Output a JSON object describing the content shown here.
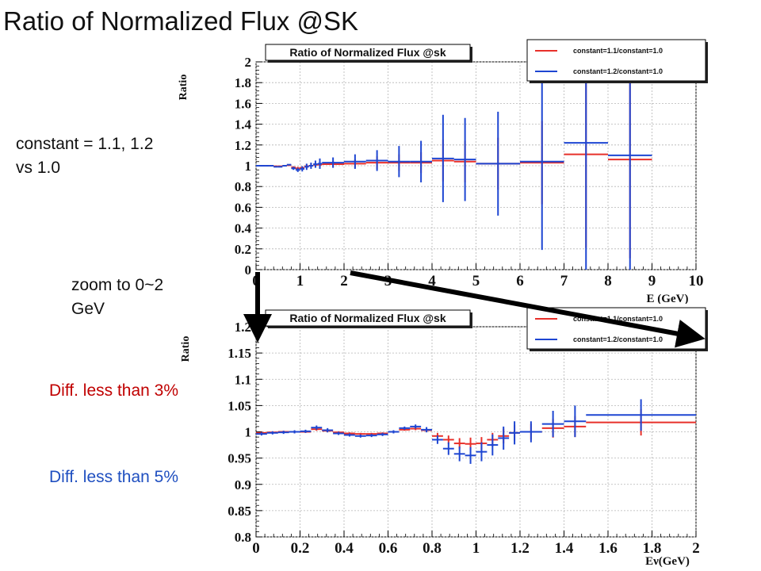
{
  "slide": {
    "title": "Ratio of Normalized Flux @SK",
    "note_constant_line1": "constant = 1.1, 1.2",
    "note_constant_line2": "vs 1.0",
    "note_zoom_line1": "zoom to 0~2",
    "note_zoom_line2": "GeV",
    "note_diff_red": "Diff. less than 3%",
    "note_diff_blue": "Diff. less than 5%",
    "colors": {
      "red": "#e8302a",
      "blue": "#1e46d2",
      "note_red": "#c00000",
      "note_blue": "#1f4fc0",
      "arrow": "#000000"
    }
  },
  "chart_data": [
    {
      "type": "scatter",
      "title": "Ratio of Normalized Flux @sk",
      "xlabel": "E (GeV)",
      "ylabel": "Ratio",
      "xlim": [
        0,
        10
      ],
      "ylim": [
        0,
        2
      ],
      "x_ticks": [
        "0",
        "1",
        "2",
        "3",
        "4",
        "5",
        "6",
        "7",
        "8",
        "9",
        "10"
      ],
      "y_ticks": [
        "0",
        "0.2",
        "0.4",
        "0.6",
        "0.8",
        "1",
        "1.2",
        "1.4",
        "1.6",
        "1.8",
        "2"
      ],
      "grid": true,
      "legend_position": "top-right",
      "series": [
        {
          "name": "constant=1.1/constant=1.0",
          "color": "#e8302a",
          "points": [
            {
              "x": 0.05,
              "xerr": 0.05,
              "y": 1.0,
              "yerr": 0.005
            },
            {
              "x": 0.15,
              "xerr": 0.05,
              "y": 1.0,
              "yerr": 0.005
            },
            {
              "x": 0.25,
              "xerr": 0.05,
              "y": 1.0,
              "yerr": 0.005
            },
            {
              "x": 0.35,
              "xerr": 0.05,
              "y": 1.0,
              "yerr": 0.005
            },
            {
              "x": 0.45,
              "xerr": 0.05,
              "y": 0.995,
              "yerr": 0.005
            },
            {
              "x": 0.55,
              "xerr": 0.05,
              "y": 0.995,
              "yerr": 0.005
            },
            {
              "x": 0.65,
              "xerr": 0.05,
              "y": 1.0,
              "yerr": 0.005
            },
            {
              "x": 0.75,
              "xerr": 0.05,
              "y": 1.005,
              "yerr": 0.005
            },
            {
              "x": 0.85,
              "xerr": 0.05,
              "y": 0.985,
              "yerr": 0.01
            },
            {
              "x": 0.95,
              "xerr": 0.05,
              "y": 0.975,
              "yerr": 0.015
            },
            {
              "x": 1.05,
              "xerr": 0.05,
              "y": 0.98,
              "yerr": 0.015
            },
            {
              "x": 1.15,
              "xerr": 0.05,
              "y": 0.995,
              "yerr": 0.02
            },
            {
              "x": 1.25,
              "xerr": 0.05,
              "y": 1.0,
              "yerr": 0.02
            },
            {
              "x": 1.35,
              "xerr": 0.05,
              "y": 1.01,
              "yerr": 0.02
            },
            {
              "x": 1.45,
              "xerr": 0.05,
              "y": 1.01,
              "yerr": 0.03
            },
            {
              "x": 1.75,
              "xerr": 0.25,
              "y": 1.015,
              "yerr": 0.03
            },
            {
              "x": 2.25,
              "xerr": 0.25,
              "y": 1.02,
              "yerr": 0.04
            },
            {
              "x": 2.75,
              "xerr": 0.25,
              "y": 1.03,
              "yerr": 0.06
            },
            {
              "x": 3.25,
              "xerr": 0.25,
              "y": 1.03,
              "yerr": 0.08
            },
            {
              "x": 3.75,
              "xerr": 0.25,
              "y": 1.03,
              "yerr": 0.1
            },
            {
              "x": 4.25,
              "xerr": 0.25,
              "y": 1.05,
              "yerr": 0.2
            },
            {
              "x": 4.75,
              "xerr": 0.25,
              "y": 1.04,
              "yerr": 0.2
            },
            {
              "x": 5.5,
              "xerr": 0.5,
              "y": 1.02,
              "yerr": 0.25
            },
            {
              "x": 6.5,
              "xerr": 0.5,
              "y": 1.03,
              "yerr": 0.4
            },
            {
              "x": 7.5,
              "xerr": 0.5,
              "y": 1.11,
              "yerr": 0.9
            },
            {
              "x": 8.5,
              "xerr": 0.5,
              "y": 1.06,
              "yerr": 0.95
            }
          ]
        },
        {
          "name": "constant=1.2/constant=1.0",
          "color": "#1e46d2",
          "points": [
            {
              "x": 0.05,
              "xerr": 0.05,
              "y": 1.0,
              "yerr": 0.005
            },
            {
              "x": 0.15,
              "xerr": 0.05,
              "y": 1.0,
              "yerr": 0.005
            },
            {
              "x": 0.25,
              "xerr": 0.05,
              "y": 1.0,
              "yerr": 0.005
            },
            {
              "x": 0.35,
              "xerr": 0.05,
              "y": 1.0,
              "yerr": 0.005
            },
            {
              "x": 0.45,
              "xerr": 0.05,
              "y": 0.99,
              "yerr": 0.005
            },
            {
              "x": 0.55,
              "xerr": 0.05,
              "y": 0.99,
              "yerr": 0.005
            },
            {
              "x": 0.65,
              "xerr": 0.05,
              "y": 1.0,
              "yerr": 0.005
            },
            {
              "x": 0.75,
              "xerr": 0.05,
              "y": 1.01,
              "yerr": 0.005
            },
            {
              "x": 0.85,
              "xerr": 0.05,
              "y": 0.975,
              "yerr": 0.015
            },
            {
              "x": 0.95,
              "xerr": 0.05,
              "y": 0.96,
              "yerr": 0.02
            },
            {
              "x": 1.05,
              "xerr": 0.05,
              "y": 0.97,
              "yerr": 0.025
            },
            {
              "x": 1.15,
              "xerr": 0.05,
              "y": 0.99,
              "yerr": 0.03
            },
            {
              "x": 1.25,
              "xerr": 0.05,
              "y": 1.0,
              "yerr": 0.03
            },
            {
              "x": 1.35,
              "xerr": 0.05,
              "y": 1.015,
              "yerr": 0.035
            },
            {
              "x": 1.45,
              "xerr": 0.05,
              "y": 1.02,
              "yerr": 0.05
            },
            {
              "x": 1.75,
              "xerr": 0.25,
              "y": 1.03,
              "yerr": 0.05
            },
            {
              "x": 2.25,
              "xerr": 0.25,
              "y": 1.04,
              "yerr": 0.07
            },
            {
              "x": 2.75,
              "xerr": 0.25,
              "y": 1.05,
              "yerr": 0.1
            },
            {
              "x": 3.25,
              "xerr": 0.25,
              "y": 1.04,
              "yerr": 0.15
            },
            {
              "x": 3.75,
              "xerr": 0.25,
              "y": 1.04,
              "yerr": 0.2
            },
            {
              "x": 4.25,
              "xerr": 0.25,
              "y": 1.07,
              "yerr": 0.42
            },
            {
              "x": 4.75,
              "xerr": 0.25,
              "y": 1.06,
              "yerr": 0.4
            },
            {
              "x": 5.5,
              "xerr": 0.5,
              "y": 1.02,
              "yerr": 0.5
            },
            {
              "x": 6.5,
              "xerr": 0.5,
              "y": 1.04,
              "yerr": 0.85
            },
            {
              "x": 7.5,
              "xerr": 0.5,
              "y": 1.22,
              "yerr": 1.4
            },
            {
              "x": 8.5,
              "xerr": 0.5,
              "y": 1.1,
              "yerr": 1.4
            }
          ]
        }
      ]
    },
    {
      "type": "scatter",
      "title": "Ratio of Normalized Flux @sk",
      "xlabel": "Eν(GeV)",
      "ylabel": "Ratio",
      "xlim": [
        0,
        2
      ],
      "ylim": [
        0.8,
        1.2
      ],
      "x_ticks": [
        "0",
        "0.2",
        "0.4",
        "0.6",
        "0.8",
        "1",
        "1.2",
        "1.4",
        "1.6",
        "1.8",
        "2"
      ],
      "y_ticks": [
        "0.8",
        "0.85",
        "0.9",
        "0.95",
        "1",
        "1.05",
        "1.1",
        "1.15",
        "1.2"
      ],
      "grid": true,
      "legend_position": "top-right",
      "series": [
        {
          "name": "constant=1.1/constant=1.0",
          "color": "#e8302a",
          "points": [
            {
              "x": 0.025,
              "xerr": 0.025,
              "y": 0.998,
              "yerr": 0.002
            },
            {
              "x": 0.075,
              "xerr": 0.025,
              "y": 0.999,
              "yerr": 0.002
            },
            {
              "x": 0.125,
              "xerr": 0.025,
              "y": 1.0,
              "yerr": 0.002
            },
            {
              "x": 0.175,
              "xerr": 0.025,
              "y": 1.0,
              "yerr": 0.002
            },
            {
              "x": 0.225,
              "xerr": 0.025,
              "y": 1.0,
              "yerr": 0.002
            },
            {
              "x": 0.275,
              "xerr": 0.025,
              "y": 1.005,
              "yerr": 0.003
            },
            {
              "x": 0.325,
              "xerr": 0.025,
              "y": 1.002,
              "yerr": 0.003
            },
            {
              "x": 0.375,
              "xerr": 0.025,
              "y": 0.999,
              "yerr": 0.002
            },
            {
              "x": 0.425,
              "xerr": 0.025,
              "y": 0.997,
              "yerr": 0.002
            },
            {
              "x": 0.475,
              "xerr": 0.025,
              "y": 0.996,
              "yerr": 0.002
            },
            {
              "x": 0.525,
              "xerr": 0.025,
              "y": 0.996,
              "yerr": 0.002
            },
            {
              "x": 0.575,
              "xerr": 0.025,
              "y": 0.997,
              "yerr": 0.002
            },
            {
              "x": 0.625,
              "xerr": 0.025,
              "y": 1.0,
              "yerr": 0.002
            },
            {
              "x": 0.675,
              "xerr": 0.025,
              "y": 1.004,
              "yerr": 0.002
            },
            {
              "x": 0.725,
              "xerr": 0.025,
              "y": 1.006,
              "yerr": 0.003
            },
            {
              "x": 0.775,
              "xerr": 0.025,
              "y": 1.003,
              "yerr": 0.003
            },
            {
              "x": 0.825,
              "xerr": 0.025,
              "y": 0.992,
              "yerr": 0.006
            },
            {
              "x": 0.875,
              "xerr": 0.025,
              "y": 0.985,
              "yerr": 0.008
            },
            {
              "x": 0.925,
              "xerr": 0.025,
              "y": 0.978,
              "yerr": 0.01
            },
            {
              "x": 0.975,
              "xerr": 0.025,
              "y": 0.977,
              "yerr": 0.012
            },
            {
              "x": 1.025,
              "xerr": 0.025,
              "y": 0.978,
              "yerr": 0.012
            },
            {
              "x": 1.075,
              "xerr": 0.025,
              "y": 0.985,
              "yerr": 0.013
            },
            {
              "x": 1.125,
              "xerr": 0.025,
              "y": 0.992,
              "yerr": 0.014
            },
            {
              "x": 1.175,
              "xerr": 0.025,
              "y": 0.998,
              "yerr": 0.015
            },
            {
              "x": 1.25,
              "xerr": 0.05,
              "y": 1.0,
              "yerr": 0.015
            },
            {
              "x": 1.35,
              "xerr": 0.05,
              "y": 1.007,
              "yerr": 0.018
            },
            {
              "x": 1.45,
              "xerr": 0.05,
              "y": 1.01,
              "yerr": 0.02
            },
            {
              "x": 1.75,
              "xerr": 0.25,
              "y": 1.018,
              "yerr": 0.025
            }
          ]
        },
        {
          "name": "constant=1.2/constant=1.0",
          "color": "#1e46d2",
          "points": [
            {
              "x": 0.025,
              "xerr": 0.025,
              "y": 0.996,
              "yerr": 0.003
            },
            {
              "x": 0.075,
              "xerr": 0.025,
              "y": 0.998,
              "yerr": 0.003
            },
            {
              "x": 0.125,
              "xerr": 0.025,
              "y": 0.999,
              "yerr": 0.003
            },
            {
              "x": 0.175,
              "xerr": 0.025,
              "y": 1.0,
              "yerr": 0.003
            },
            {
              "x": 0.225,
              "xerr": 0.025,
              "y": 1.001,
              "yerr": 0.003
            },
            {
              "x": 0.275,
              "xerr": 0.025,
              "y": 1.008,
              "yerr": 0.004
            },
            {
              "x": 0.325,
              "xerr": 0.025,
              "y": 1.003,
              "yerr": 0.004
            },
            {
              "x": 0.375,
              "xerr": 0.025,
              "y": 0.997,
              "yerr": 0.003
            },
            {
              "x": 0.425,
              "xerr": 0.025,
              "y": 0.994,
              "yerr": 0.003
            },
            {
              "x": 0.475,
              "xerr": 0.025,
              "y": 0.992,
              "yerr": 0.003
            },
            {
              "x": 0.525,
              "xerr": 0.025,
              "y": 0.993,
              "yerr": 0.003
            },
            {
              "x": 0.575,
              "xerr": 0.025,
              "y": 0.995,
              "yerr": 0.003
            },
            {
              "x": 0.625,
              "xerr": 0.025,
              "y": 1.0,
              "yerr": 0.003
            },
            {
              "x": 0.675,
              "xerr": 0.025,
              "y": 1.007,
              "yerr": 0.003
            },
            {
              "x": 0.725,
              "xerr": 0.025,
              "y": 1.01,
              "yerr": 0.004
            },
            {
              "x": 0.775,
              "xerr": 0.025,
              "y": 1.004,
              "yerr": 0.005
            },
            {
              "x": 0.825,
              "xerr": 0.025,
              "y": 0.985,
              "yerr": 0.008
            },
            {
              "x": 0.875,
              "xerr": 0.025,
              "y": 0.968,
              "yerr": 0.012
            },
            {
              "x": 0.925,
              "xerr": 0.025,
              "y": 0.958,
              "yerr": 0.014
            },
            {
              "x": 0.975,
              "xerr": 0.025,
              "y": 0.955,
              "yerr": 0.016
            },
            {
              "x": 1.025,
              "xerr": 0.025,
              "y": 0.962,
              "yerr": 0.018
            },
            {
              "x": 1.075,
              "xerr": 0.025,
              "y": 0.975,
              "yerr": 0.02
            },
            {
              "x": 1.125,
              "xerr": 0.025,
              "y": 0.988,
              "yerr": 0.022
            },
            {
              "x": 1.175,
              "xerr": 0.025,
              "y": 0.998,
              "yerr": 0.022
            },
            {
              "x": 1.25,
              "xerr": 0.05,
              "y": 1.0,
              "yerr": 0.02
            },
            {
              "x": 1.35,
              "xerr": 0.05,
              "y": 1.015,
              "yerr": 0.025
            },
            {
              "x": 1.45,
              "xerr": 0.05,
              "y": 1.02,
              "yerr": 0.03
            },
            {
              "x": 1.75,
              "xerr": 0.25,
              "y": 1.032,
              "yerr": 0.03
            }
          ]
        }
      ]
    }
  ]
}
